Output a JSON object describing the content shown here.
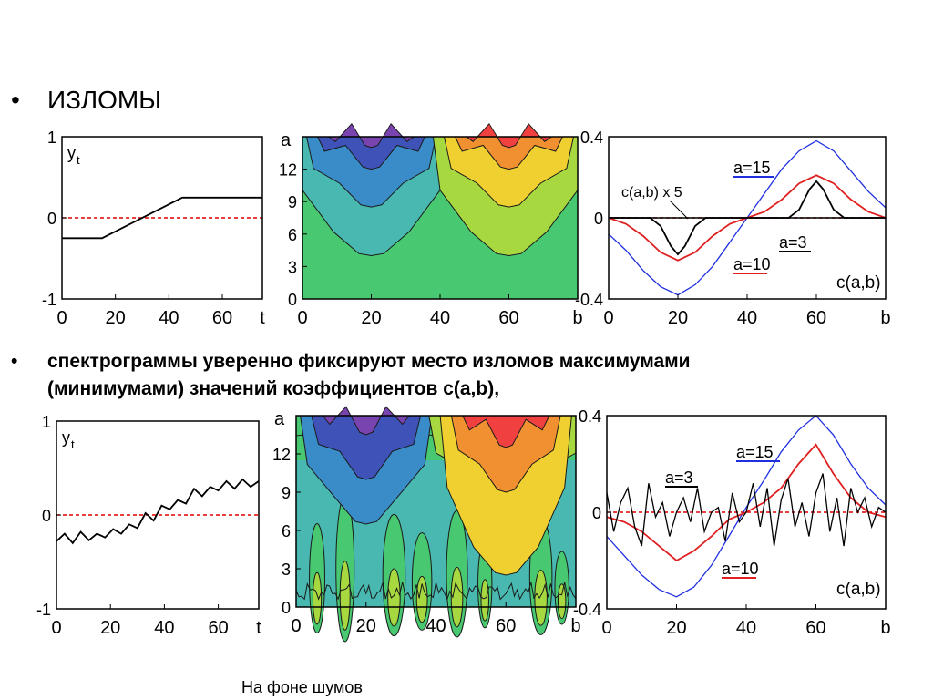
{
  "bullets": {
    "title": "ИЗЛОМЫ",
    "text_line1": "спектрограммы уверенно фиксируют место изломов максимумами",
    "text_line2": "(минимумами) значений коэффициентов c(a,b),",
    "marker": "•"
  },
  "caption": "На фоне шумов",
  "colors": {
    "signal": "#000000",
    "zero_line": "#e00000",
    "a3": "#000000",
    "a10": "#e02020",
    "a15": "#2030e0",
    "frame": "#000000"
  },
  "chart_data": [
    {
      "type": "line",
      "title": "",
      "xlabel": "t",
      "ylabel": "y_t",
      "xlim": [
        0,
        75
      ],
      "ylim": [
        -1,
        1
      ],
      "xticks": [
        "0",
        "20",
        "40",
        "60"
      ],
      "yticks": [
        "-1",
        "0",
        "1"
      ],
      "series": [
        {
          "x": [
            0,
            15,
            45,
            75
          ],
          "y": [
            -0.25,
            -0.25,
            0.25,
            0.25
          ]
        }
      ]
    },
    {
      "type": "heatmap",
      "title": "",
      "xlabel": "b",
      "ylabel": "a",
      "xlim": [
        0,
        80
      ],
      "ylim": [
        0,
        15
      ],
      "xticks": [
        "0",
        "20",
        "40",
        "60"
      ],
      "yticks": [
        "0",
        "3",
        "6",
        "9",
        "12"
      ],
      "features": [
        {
          "center_b": 20,
          "kind": "minimum"
        },
        {
          "center_b": 60,
          "kind": "maximum"
        }
      ]
    },
    {
      "type": "line",
      "title": "",
      "xlabel": "b",
      "ylabel": "c(a,b)",
      "xlim": [
        0,
        80
      ],
      "ylim": [
        -0.4,
        0.4
      ],
      "xticks": [
        "0",
        "20",
        "40",
        "60"
      ],
      "yticks": [
        "-0.4",
        "0",
        "0.4"
      ],
      "annotations": [
        "a=15",
        "c(a,b) x 5",
        "a=3",
        "a=10",
        "c(a,b)"
      ],
      "series": [
        {
          "x": [
            0,
            5,
            10,
            15,
            20,
            25,
            30,
            35,
            40,
            45,
            50,
            55,
            60,
            65,
            70,
            75,
            80
          ],
          "y": [
            -0.08,
            -0.16,
            -0.26,
            -0.34,
            -0.38,
            -0.33,
            -0.24,
            -0.12,
            0.0,
            0.12,
            0.24,
            0.33,
            0.38,
            0.33,
            0.23,
            0.13,
            0.05
          ]
        },
        {
          "x": [
            0,
            5,
            10,
            15,
            20,
            25,
            30,
            35,
            40,
            45,
            50,
            55,
            60,
            65,
            70,
            75,
            80
          ],
          "y": [
            0.0,
            -0.03,
            -0.09,
            -0.17,
            -0.21,
            -0.17,
            -0.09,
            -0.03,
            0.0,
            0.03,
            0.09,
            0.17,
            0.21,
            0.17,
            0.09,
            0.03,
            0.0
          ]
        },
        {
          "x": [
            0,
            12,
            15,
            18,
            20,
            22,
            25,
            28,
            52,
            55,
            58,
            60,
            62,
            65,
            68,
            80
          ],
          "y": [
            0.0,
            0.0,
            -0.04,
            -0.14,
            -0.18,
            -0.14,
            -0.04,
            0.0,
            0.0,
            0.04,
            0.14,
            0.18,
            0.14,
            0.04,
            0.0,
            0.0
          ]
        }
      ]
    },
    {
      "type": "line",
      "title": "",
      "xlabel": "t",
      "ylabel": "y_t",
      "xlim": [
        0,
        75
      ],
      "ylim": [
        -1,
        1
      ],
      "xticks": [
        "0",
        "20",
        "40",
        "60"
      ],
      "yticks": [
        "-1",
        "0",
        "1"
      ],
      "series": [
        {
          "x": [
            0,
            3,
            6,
            9,
            12,
            15,
            18,
            21,
            24,
            27,
            30,
            33,
            36,
            39,
            42,
            45,
            48,
            51,
            54,
            57,
            60,
            63,
            66,
            69,
            72,
            75
          ],
          "y": [
            -0.28,
            -0.2,
            -0.3,
            -0.18,
            -0.27,
            -0.2,
            -0.24,
            -0.15,
            -0.2,
            -0.1,
            -0.14,
            0.02,
            -0.06,
            0.1,
            0.06,
            0.16,
            0.12,
            0.28,
            0.2,
            0.3,
            0.26,
            0.36,
            0.28,
            0.38,
            0.3,
            0.36
          ]
        }
      ]
    },
    {
      "type": "heatmap",
      "title": "",
      "xlabel": "b",
      "ylabel": "a",
      "xlim": [
        0,
        80
      ],
      "ylim": [
        0,
        15
      ],
      "xticks": [
        "0",
        "20",
        "40",
        "60"
      ],
      "yticks": [
        "0",
        "3",
        "6",
        "9",
        "12"
      ],
      "features": [
        {
          "center_b": 20,
          "kind": "minimum"
        },
        {
          "center_b": 60,
          "kind": "maximum"
        },
        {
          "region": "small a",
          "kind": "noise"
        }
      ]
    },
    {
      "type": "line",
      "title": "",
      "xlabel": "b",
      "ylabel": "c(a,b)",
      "xlim": [
        0,
        80
      ],
      "ylim": [
        -0.4,
        0.4
      ],
      "xticks": [
        "0",
        "20",
        "40",
        "60"
      ],
      "yticks": [
        "-0.4",
        "0",
        "0.4"
      ],
      "annotations": [
        "a=15",
        "a=3",
        "a=10",
        "c(a,b)"
      ],
      "series": [
        {
          "x": [
            0,
            5,
            10,
            15,
            20,
            25,
            30,
            35,
            40,
            45,
            50,
            55,
            60,
            65,
            70,
            75,
            80
          ],
          "y": [
            -0.1,
            -0.18,
            -0.26,
            -0.32,
            -0.35,
            -0.31,
            -0.22,
            -0.1,
            0.02,
            0.13,
            0.25,
            0.34,
            0.4,
            0.32,
            0.2,
            0.1,
            0.03
          ]
        },
        {
          "x": [
            0,
            5,
            10,
            15,
            20,
            25,
            30,
            35,
            40,
            45,
            50,
            55,
            60,
            65,
            70,
            75,
            80
          ],
          "y": [
            -0.02,
            -0.04,
            -0.08,
            -0.14,
            -0.2,
            -0.16,
            -0.1,
            -0.03,
            0.0,
            0.04,
            0.1,
            0.2,
            0.28,
            0.16,
            0.06,
            0.0,
            -0.02
          ]
        },
        {
          "x": [
            0,
            2,
            4,
            6,
            8,
            10,
            12,
            14,
            16,
            18,
            20,
            22,
            24,
            26,
            28,
            30,
            32,
            34,
            36,
            38,
            40,
            42,
            44,
            46,
            48,
            50,
            52,
            54,
            56,
            58,
            60,
            62,
            64,
            66,
            68,
            70,
            72,
            74,
            76,
            78,
            80
          ],
          "y": [
            0.08,
            -0.08,
            0.04,
            0.1,
            -0.06,
            -0.14,
            0.12,
            -0.02,
            0.04,
            -0.1,
            0.0,
            0.06,
            -0.04,
            0.1,
            -0.08,
            0.0,
            0.02,
            -0.12,
            0.08,
            -0.04,
            0.0,
            0.12,
            -0.06,
            0.1,
            -0.14,
            0.05,
            0.14,
            -0.06,
            0.04,
            -0.1,
            0.08,
            0.16,
            -0.08,
            0.06,
            -0.14,
            0.1,
            0.0,
            0.06,
            -0.06,
            0.02,
            0.0
          ]
        }
      ]
    }
  ]
}
